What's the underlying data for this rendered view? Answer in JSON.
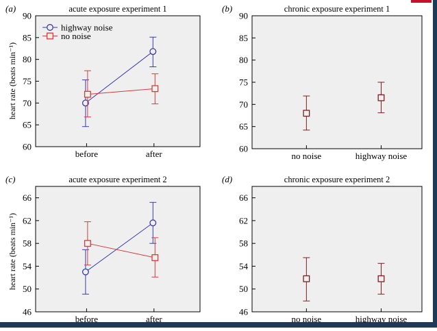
{
  "colors": {
    "panel_bg": "#efefef",
    "highway": "#3a3aa8",
    "no_noise": "#d63a3a",
    "chronic": "#7a1f1f",
    "axis": "#000000",
    "slide_border": "#1e3a56",
    "accent": "#c8102e"
  },
  "chart_data": [
    {
      "panel_label": "(a)",
      "title": "acute exposure experiment 1",
      "type": "line",
      "ylabel": "heart rate (beats min⁻¹)",
      "ylim": [
        60,
        90
      ],
      "yticks": [
        "60",
        "65",
        "70",
        "75",
        "80",
        "85",
        "90"
      ],
      "categories": [
        "before",
        "after"
      ],
      "legend": {
        "placement": "top-left"
      },
      "series": [
        {
          "name": "highway noise",
          "marker": "circle",
          "color": "#3a3aa8",
          "values": [
            70,
            81.8
          ],
          "err_low": [
            64.6,
            78.3
          ],
          "err_high": [
            75.3,
            85.1
          ]
        },
        {
          "name": "no noise",
          "marker": "square",
          "color": "#d63a3a",
          "values": [
            72,
            73.3
          ],
          "err_low": [
            66.8,
            69.8
          ],
          "err_high": [
            77.4,
            76.7
          ]
        }
      ]
    },
    {
      "panel_label": "(b)",
      "title": "chronic exposure experiment 1",
      "type": "scatter",
      "ylabel": "",
      "ylim": [
        60,
        90
      ],
      "yticks": [
        "60",
        "65",
        "70",
        "75",
        "80",
        "85",
        "90"
      ],
      "categories": [
        "no noise",
        "highway noise"
      ],
      "series": [
        {
          "marker": "square",
          "color": "#7a1f1f",
          "values": [
            68,
            71.5
          ],
          "err_low": [
            64.2,
            68.1
          ],
          "err_high": [
            71.9,
            75
          ]
        }
      ]
    },
    {
      "panel_label": "(c)",
      "title": "acute exposure experiment 2",
      "type": "line",
      "ylabel": "heart rate (beats min⁻¹)",
      "ylim": [
        46,
        68
      ],
      "yticks": [
        "46",
        "50",
        "54",
        "58",
        "62",
        "66"
      ],
      "categories": [
        "before",
        "after"
      ],
      "series": [
        {
          "name": "highway noise",
          "marker": "circle",
          "color": "#3a3aa8",
          "values": [
            53,
            61.6
          ],
          "err_low": [
            49.1,
            58
          ],
          "err_high": [
            56.9,
            65.2
          ]
        },
        {
          "name": "no noise",
          "marker": "square",
          "color": "#d63a3a",
          "values": [
            58,
            55.5
          ],
          "err_low": [
            54.2,
            52.1
          ],
          "err_high": [
            61.8,
            59
          ]
        }
      ]
    },
    {
      "panel_label": "(d)",
      "title": "chronic exposure experiment 2",
      "type": "scatter",
      "ylabel": "",
      "ylim": [
        46,
        68
      ],
      "yticks": [
        "46",
        "50",
        "54",
        "58",
        "62",
        "66"
      ],
      "categories": [
        "no noise",
        "highway noise"
      ],
      "series": [
        {
          "marker": "square",
          "color": "#7a1f1f",
          "values": [
            51.8,
            51.8
          ],
          "err_low": [
            47.9,
            49.1
          ],
          "err_high": [
            55.5,
            54.5
          ]
        }
      ]
    }
  ]
}
